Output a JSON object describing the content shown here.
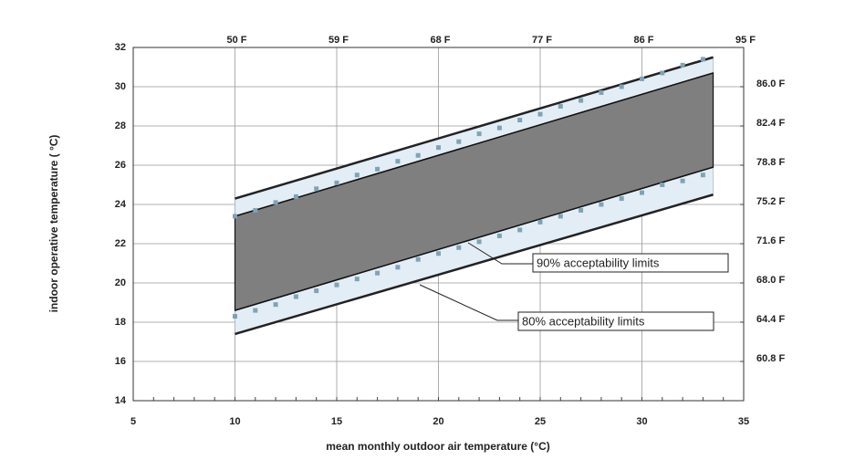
{
  "chart_data": {
    "type": "band",
    "xlabel": "mean monthly outdoor air temperature (°C)",
    "ylabel": "indoor operative temperature ( °C)",
    "xlim": [
      5,
      35
    ],
    "xticks": [
      5,
      10,
      15,
      20,
      25,
      30,
      35
    ],
    "ylim": [
      14,
      32
    ],
    "yticks": [
      14,
      16,
      18,
      20,
      22,
      24,
      26,
      28,
      30,
      32
    ],
    "x2ticks": [
      {
        "value": 10,
        "label": "50 F"
      },
      {
        "value": 15,
        "label": "59 F"
      },
      {
        "value": 20,
        "label": "68 F"
      },
      {
        "value": 25,
        "label": "77 F"
      },
      {
        "value": 30,
        "label": "86 F"
      },
      {
        "value": 35,
        "label": "95 F"
      }
    ],
    "y2lim": [
      14,
      32
    ],
    "y2ticks": [
      {
        "value": 16,
        "label": "60.8 F"
      },
      {
        "value": 18,
        "label": "64.4 F"
      },
      {
        "value": 20,
        "label": "68.0 F"
      },
      {
        "value": 22,
        "label": "71.6 F"
      },
      {
        "value": 24,
        "label": "75.2 F"
      },
      {
        "value": 26,
        "label": "78.8 F"
      },
      {
        "value": 28,
        "label": "82.4 F"
      },
      {
        "value": 30,
        "label": "86.0 F"
      }
    ],
    "grid": true,
    "bands": [
      {
        "x": [
          10,
          33.5
        ],
        "lower": [
          17.4,
          24.5
        ],
        "upper": [
          24.3,
          31.5
        ],
        "color": "#e3edf6",
        "edge": "#222222"
      },
      {
        "x": [
          10,
          33.5
        ],
        "lower": [
          18.6,
          25.9
        ],
        "upper": [
          23.4,
          30.7
        ],
        "color": "#7f7f7f",
        "edge": "#111111"
      }
    ],
    "points": {
      "x": [
        10,
        11,
        12,
        13,
        14,
        15,
        16,
        17,
        18,
        19,
        20,
        21,
        22,
        23,
        24,
        25,
        26,
        27,
        28,
        29,
        30,
        31,
        32,
        33
      ],
      "upper": [
        23.4,
        23.7,
        24.1,
        24.4,
        24.8,
        25.1,
        25.5,
        25.8,
        26.2,
        26.5,
        26.9,
        27.2,
        27.6,
        27.9,
        28.3,
        28.6,
        29.0,
        29.3,
        29.7,
        30.0,
        30.4,
        30.7,
        31.1,
        31.4
      ],
      "lower": [
        18.3,
        18.6,
        18.9,
        19.3,
        19.6,
        19.9,
        20.2,
        20.5,
        20.8,
        21.2,
        21.5,
        21.8,
        22.1,
        22.4,
        22.7,
        23.1,
        23.4,
        23.7,
        24.0,
        24.3,
        24.6,
        25.0,
        25.2,
        25.5
      ],
      "color": "#7fa3b5"
    },
    "annotations": [
      {
        "text": "90% acceptability limits"
      },
      {
        "text": "80% acceptability limits"
      }
    ]
  }
}
